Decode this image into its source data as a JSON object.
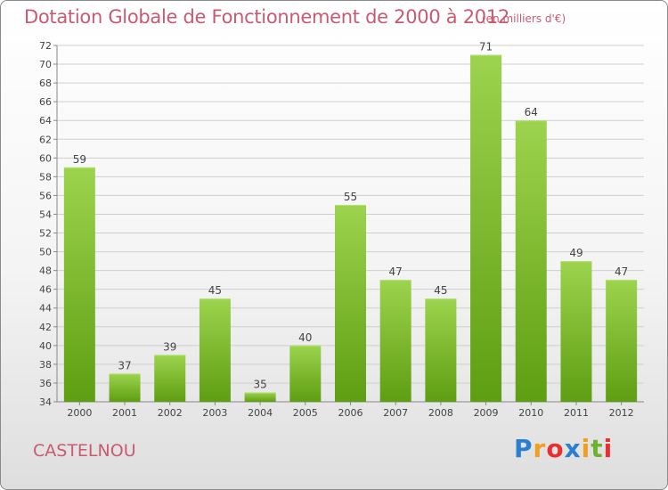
{
  "title": "Dotation Globale de Fonctionnement de 2000 à 2012",
  "unit": "(en milliers d'€)",
  "commune": "CASTELNOU",
  "brand": {
    "letters": [
      "P",
      "r",
      "o",
      "x",
      "i",
      "t",
      "i"
    ],
    "colors": [
      "#2a7fd0",
      "#f0a020",
      "#e83030",
      "#2a7fd0",
      "#f0a020",
      "#70b030",
      "#e83030"
    ]
  },
  "colors": {
    "bar_top": "#9dd34e",
    "bar_bottom": "#5e9e12",
    "grid": "#cfcfcf",
    "text_accent": "#c85a72"
  },
  "chart_data": {
    "type": "bar",
    "categories": [
      "2000",
      "2001",
      "2002",
      "2003",
      "2004",
      "2005",
      "2006",
      "2007",
      "2008",
      "2009",
      "2010",
      "2011",
      "2012"
    ],
    "values": [
      59,
      37,
      39,
      45,
      35,
      40,
      55,
      47,
      45,
      71,
      64,
      49,
      47
    ],
    "title": "Dotation Globale de Fonctionnement de 2000 à 2012",
    "xlabel": "",
    "ylabel": "",
    "ylim": [
      34,
      72
    ],
    "yticks": [
      34,
      36,
      38,
      40,
      42,
      44,
      46,
      48,
      50,
      52,
      54,
      56,
      58,
      60,
      62,
      64,
      66,
      68,
      70,
      72
    ],
    "grid": true,
    "legend": "none"
  }
}
